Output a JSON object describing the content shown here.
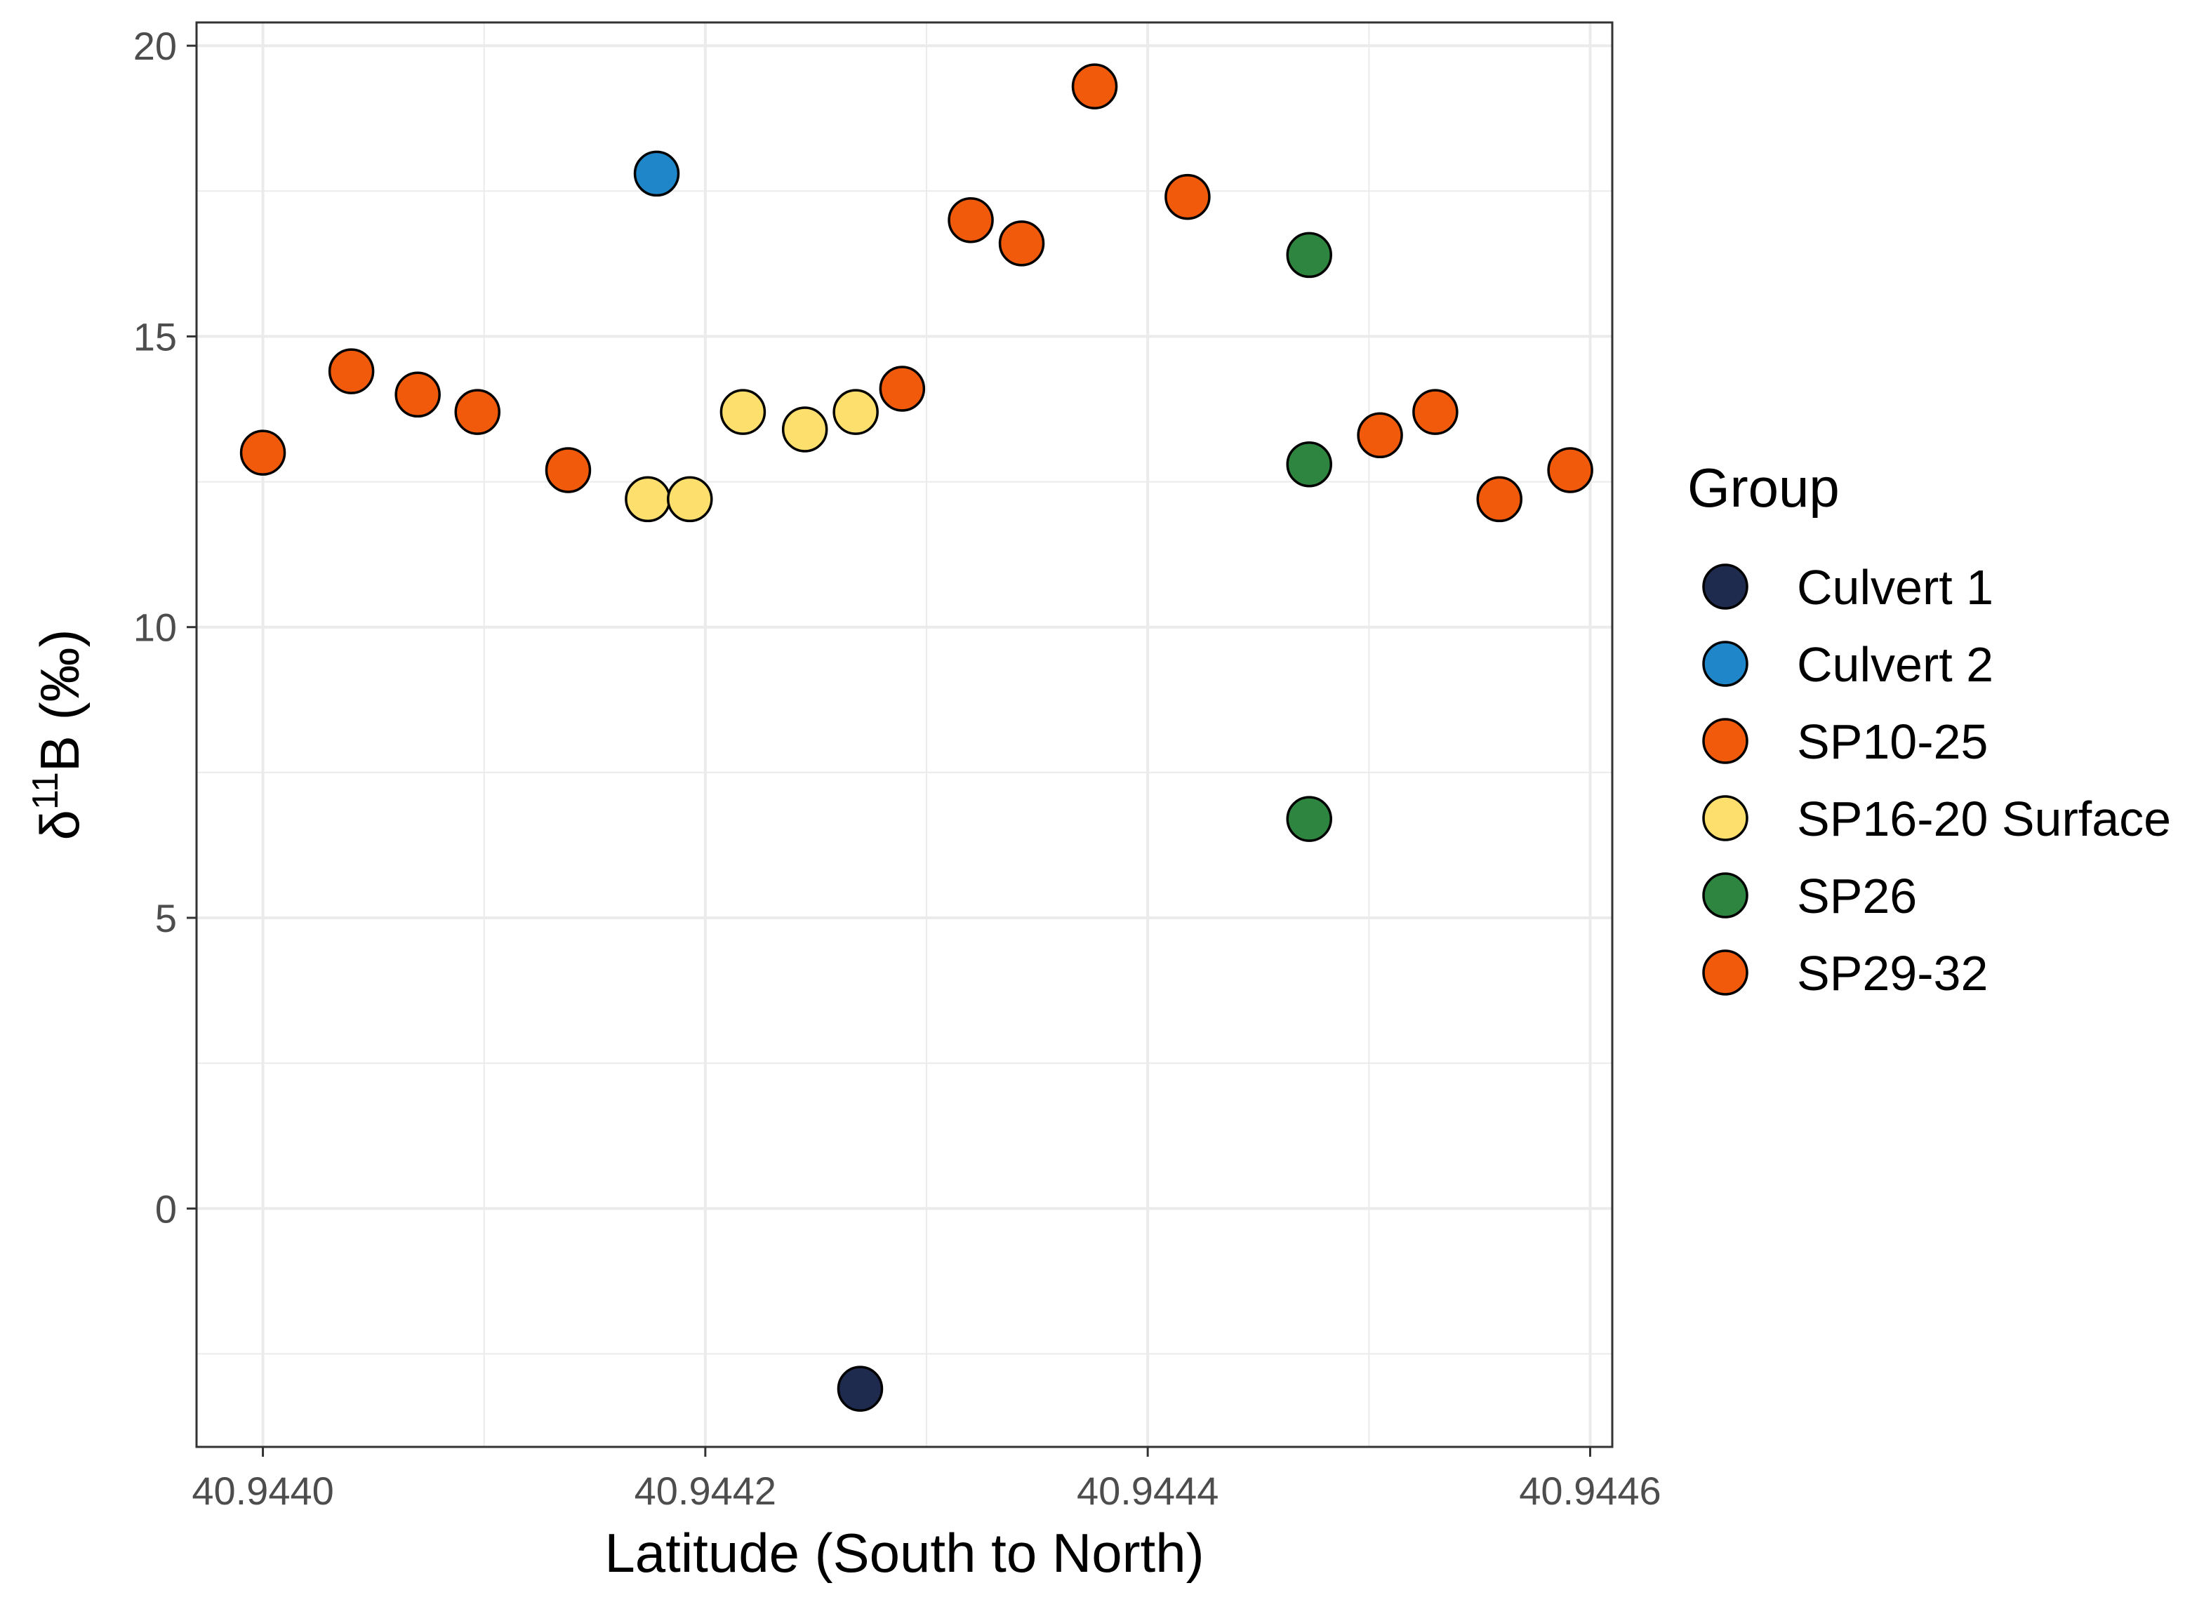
{
  "chart_data": {
    "type": "scatter",
    "title": "",
    "xlabel": "Latitude (South to North)",
    "ylabel": {
      "prefix": "δ",
      "superscript": "11",
      "suffix": "B (‰)"
    },
    "xlim": [
      40.94397,
      40.94461
    ],
    "ylim": [
      -4.1,
      20.4
    ],
    "x_ticks": [
      40.944,
      40.9442,
      40.9444,
      40.9446
    ],
    "x_tick_labels": [
      "40.9440",
      "40.9442",
      "40.9444",
      "40.9446"
    ],
    "y_ticks": [
      0,
      5,
      10,
      15,
      20
    ],
    "y_tick_labels": [
      "0",
      "5",
      "10",
      "15",
      "20"
    ],
    "grid": true,
    "legend": {
      "title": "Group",
      "position": "right"
    },
    "series": [
      {
        "name": "Culvert 1",
        "color": "#1f2a4f",
        "points": [
          [
            40.94427,
            -3.1
          ]
        ]
      },
      {
        "name": "Culvert 2",
        "color": "#1f87c9",
        "points": [
          [
            40.944178,
            17.8
          ]
        ]
      },
      {
        "name": "SP10-25",
        "color": "#f05a0a",
        "points": [
          [
            40.944,
            13.0
          ],
          [
            40.94404,
            14.4
          ],
          [
            40.94407,
            14.0
          ],
          [
            40.944097,
            13.7
          ],
          [
            40.944138,
            12.7
          ],
          [
            40.944289,
            14.1
          ],
          [
            40.94432,
            17.0
          ],
          [
            40.944343,
            16.6
          ],
          [
            40.944376,
            19.3
          ],
          [
            40.944418,
            17.4
          ]
        ]
      },
      {
        "name": "SP16-20 Surface",
        "color": "#fddf6e",
        "points": [
          [
            40.944174,
            12.2
          ],
          [
            40.944193,
            12.2
          ],
          [
            40.944217,
            13.7
          ],
          [
            40.944245,
            13.4
          ],
          [
            40.944268,
            13.7
          ]
        ]
      },
      {
        "name": "SP26",
        "color": "#2e8540",
        "points": [
          [
            40.944473,
            16.4
          ],
          [
            40.944473,
            12.8
          ],
          [
            40.944473,
            6.7
          ]
        ]
      },
      {
        "name": "SP29-32",
        "color": "#f05a0a",
        "points": [
          [
            40.944505,
            13.3
          ],
          [
            40.94453,
            13.7
          ],
          [
            40.944559,
            12.2
          ],
          [
            40.944591,
            12.7
          ]
        ]
      }
    ]
  }
}
